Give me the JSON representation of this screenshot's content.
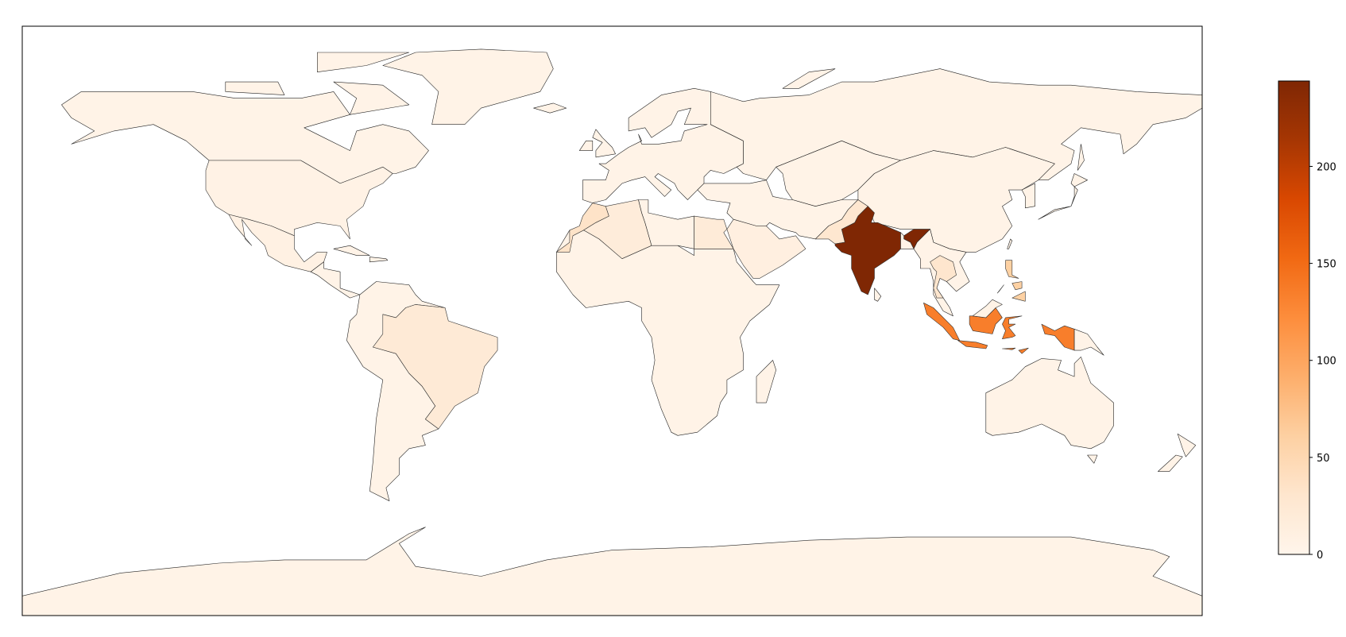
{
  "chart_data": {
    "type": "choropleth",
    "projection": "equirectangular",
    "extent": {
      "lon": [
        -180,
        180
      ],
      "lat": [
        -90,
        90
      ]
    },
    "colormap": "Oranges",
    "colormap_stops": [
      "#fff5eb",
      "#fee6ce",
      "#fdd0a2",
      "#fdae6b",
      "#fd8d3c",
      "#f16913",
      "#d94801",
      "#a63603",
      "#7f2704"
    ],
    "vmin": 0,
    "vmax": 244,
    "colorbar": {
      "position": "right",
      "ticks": [
        0,
        50,
        100,
        150,
        200
      ],
      "tick_labels": [
        "0",
        "50",
        "100",
        "150",
        "200"
      ]
    },
    "regions": [
      {
        "id": "india",
        "value": 244
      },
      {
        "id": "indonesia",
        "value": 135
      },
      {
        "id": "philippines",
        "value": 60
      },
      {
        "id": "morocco",
        "value": 35
      },
      {
        "id": "thailand",
        "value": 30
      },
      {
        "id": "pakistan",
        "value": 28
      },
      {
        "id": "brazil",
        "value": 22
      },
      {
        "id": "egypt",
        "value": 20
      },
      {
        "id": "algeria",
        "value": 18
      },
      {
        "id": "saudi_arabia",
        "value": 12
      },
      {
        "id": "mexico",
        "value": 8
      },
      {
        "id": "usa",
        "value": 6
      },
      {
        "id": "malaysia",
        "value": 5
      },
      {
        "id": "other",
        "value": 4
      }
    ]
  }
}
